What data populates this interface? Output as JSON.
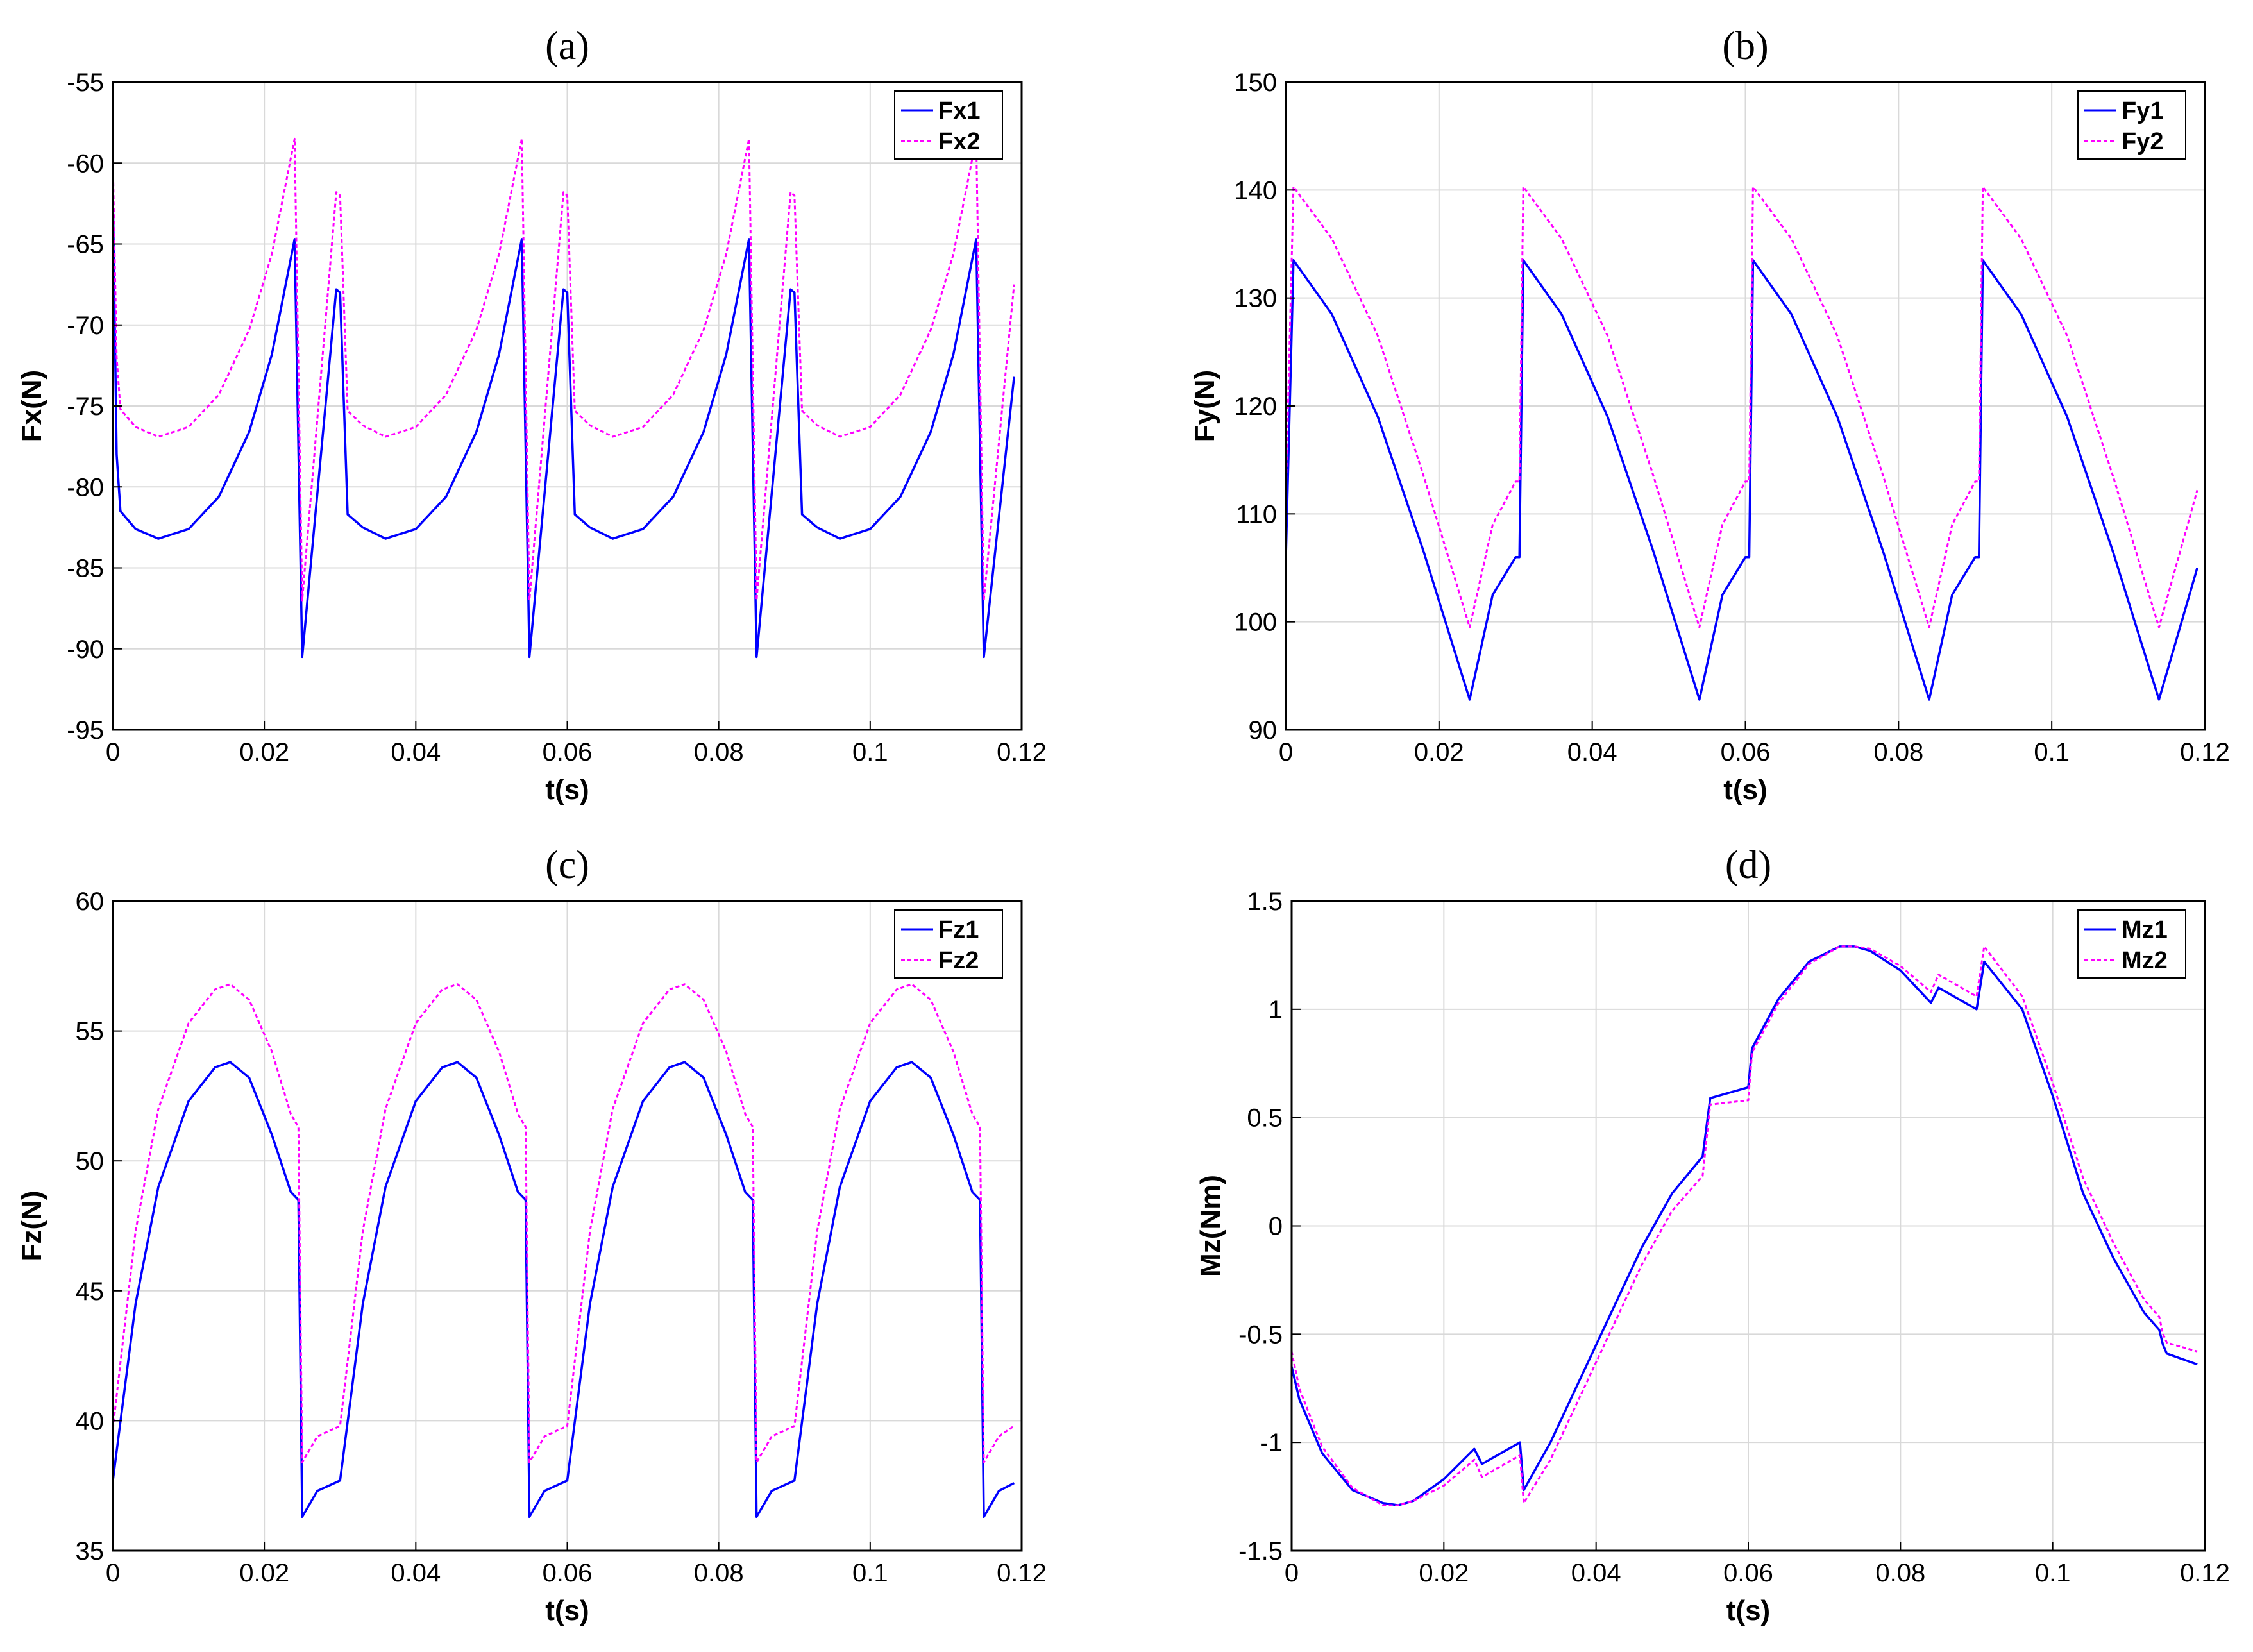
{
  "chart_data": [
    {
      "panel": "(a)",
      "type": "line",
      "title": "(a)",
      "xlabel": "t(s)",
      "ylabel": "Fx(N)",
      "xlim": [
        0,
        0.12
      ],
      "ylim": [
        -95,
        -55
      ],
      "xticks": [
        0,
        0.02,
        0.04,
        0.06,
        0.08,
        0.1,
        0.12
      ],
      "xtick_labels": [
        "0",
        "0.02",
        "0.04",
        "0.06",
        "0.08",
        "0.1",
        "0.12"
      ],
      "yticks": [
        -95,
        -90,
        -85,
        -80,
        -75,
        -70,
        -65,
        -60,
        -55
      ],
      "ytick_labels": [
        "-95",
        "-90",
        "-85",
        "-80",
        "-75",
        "-70",
        "-65",
        "-60",
        "-55"
      ],
      "grid": true,
      "legend_position": "top-right",
      "series": [
        {
          "name": "Fx1",
          "color": "#0000ff",
          "dashed": false,
          "x": [
            0,
            0.0005,
            0.001,
            0.003,
            0.006,
            0.01,
            0.014,
            0.018,
            0.021,
            0.024,
            0.025,
            0.0295,
            0.03,
            0.031,
            0.033,
            0.036,
            0.04,
            0.044,
            0.048,
            0.051,
            0.054,
            0.055,
            0.0595,
            0.06,
            0.061,
            0.063,
            0.066,
            0.07,
            0.074,
            0.078,
            0.081,
            0.084,
            0.085,
            0.0895,
            0.09,
            0.091,
            0.093,
            0.096,
            0.1,
            0.104,
            0.108,
            0.111,
            0.114,
            0.115,
            0.119
          ],
          "y": [
            -62,
            -78,
            -81.5,
            -82.6,
            -83.2,
            -82.6,
            -80.6,
            -76.6,
            -71.8,
            -64.7,
            -90.5,
            -67.8,
            -68,
            -81.7,
            -82.5,
            -83.2,
            -82.6,
            -80.6,
            -76.6,
            -71.8,
            -64.7,
            -90.5,
            -67.8,
            -68,
            -81.7,
            -82.5,
            -83.2,
            -82.6,
            -80.6,
            -76.6,
            -71.8,
            -64.7,
            -90.5,
            -67.8,
            -68,
            -81.7,
            -82.5,
            -83.2,
            -82.6,
            -80.6,
            -76.6,
            -71.8,
            -64.7,
            -90.5,
            -73.2
          ]
        },
        {
          "name": "Fx2",
          "color": "#ff00ff",
          "dashed": true,
          "x": [
            0,
            0.0005,
            0.001,
            0.003,
            0.006,
            0.01,
            0.014,
            0.018,
            0.021,
            0.024,
            0.025,
            0.0295,
            0.03,
            0.031,
            0.033,
            0.036,
            0.04,
            0.044,
            0.048,
            0.051,
            0.054,
            0.055,
            0.0595,
            0.06,
            0.061,
            0.063,
            0.066,
            0.07,
            0.074,
            0.078,
            0.081,
            0.084,
            0.085,
            0.0895,
            0.09,
            0.091,
            0.093,
            0.096,
            0.1,
            0.104,
            0.108,
            0.111,
            0.114,
            0.115,
            0.119
          ],
          "y": [
            -60,
            -72,
            -75.2,
            -76.3,
            -76.9,
            -76.3,
            -74.3,
            -70.3,
            -65.6,
            -58.5,
            -87,
            -61.8,
            -62,
            -75.3,
            -76.2,
            -76.9,
            -76.3,
            -74.3,
            -70.3,
            -65.6,
            -58.5,
            -87,
            -61.8,
            -62,
            -75.3,
            -76.2,
            -76.9,
            -76.3,
            -74.3,
            -70.3,
            -65.6,
            -58.5,
            -87,
            -61.8,
            -62,
            -75.3,
            -76.2,
            -76.9,
            -76.3,
            -74.3,
            -70.3,
            -65.6,
            -58.5,
            -87,
            -67.5
          ]
        }
      ]
    },
    {
      "panel": "(b)",
      "type": "line",
      "title": "(b)",
      "xlabel": "t(s)",
      "ylabel": "Fy(N)",
      "xlim": [
        0,
        0.12
      ],
      "ylim": [
        90,
        150
      ],
      "xticks": [
        0,
        0.02,
        0.04,
        0.06,
        0.08,
        0.1,
        0.12
      ],
      "xtick_labels": [
        "0",
        "0.02",
        "0.04",
        "0.06",
        "0.08",
        "0.1",
        "0.12"
      ],
      "yticks": [
        90,
        100,
        110,
        120,
        130,
        140,
        150
      ],
      "ytick_labels": [
        "90",
        "100",
        "110",
        "120",
        "130",
        "140",
        "150"
      ],
      "grid": true,
      "legend_position": "top-right",
      "series": [
        {
          "name": "Fy1",
          "color": "#0000ff",
          "dashed": false,
          "x": [
            0,
            0.001,
            0.006,
            0.012,
            0.018,
            0.024,
            0.027,
            0.03,
            0.0305,
            0.031,
            0.036,
            0.042,
            0.048,
            0.054,
            0.057,
            0.06,
            0.0605,
            0.061,
            0.066,
            0.072,
            0.078,
            0.084,
            0.087,
            0.09,
            0.0905,
            0.091,
            0.096,
            0.102,
            0.108,
            0.114,
            0.119
          ],
          "y": [
            106,
            133.5,
            128.5,
            119,
            106.5,
            92.8,
            102.5,
            106,
            106,
            133.5,
            128.5,
            119,
            106.5,
            92.8,
            102.5,
            106,
            106,
            133.5,
            128.5,
            119,
            106.5,
            92.8,
            102.5,
            106,
            106,
            133.5,
            128.5,
            119,
            106.5,
            92.8,
            105
          ]
        },
        {
          "name": "Fy2",
          "color": "#ff00ff",
          "dashed": true,
          "x": [
            0,
            0.001,
            0.006,
            0.012,
            0.018,
            0.024,
            0.027,
            0.03,
            0.0305,
            0.031,
            0.036,
            0.042,
            0.048,
            0.054,
            0.057,
            0.06,
            0.0605,
            0.061,
            0.066,
            0.072,
            0.078,
            0.084,
            0.087,
            0.09,
            0.0905,
            0.091,
            0.096,
            0.102,
            0.108,
            0.114,
            0.119
          ],
          "y": [
            112,
            140.3,
            135.5,
            126.5,
            113.5,
            99.5,
            109,
            113,
            113,
            140.3,
            135.5,
            126.5,
            113.5,
            99.5,
            109,
            113,
            113,
            140.3,
            135.5,
            126.5,
            113.5,
            99.5,
            109,
            113,
            113,
            140.3,
            135.5,
            126.5,
            113.5,
            99.5,
            112.2
          ]
        }
      ]
    },
    {
      "panel": "(c)",
      "type": "line",
      "title": "(c)",
      "xlabel": "t(s)",
      "ylabel": "Fz(N)",
      "xlim": [
        0,
        0.12
      ],
      "ylim": [
        35,
        60
      ],
      "xticks": [
        0,
        0.02,
        0.04,
        0.06,
        0.08,
        0.1,
        0.12
      ],
      "xtick_labels": [
        "0",
        "0.02",
        "0.04",
        "0.06",
        "0.08",
        "0.1",
        "0.12"
      ],
      "yticks": [
        35,
        40,
        45,
        50,
        55,
        60
      ],
      "ytick_labels": [
        "35",
        "40",
        "45",
        "50",
        "55",
        "60"
      ],
      "grid": true,
      "legend_position": "top-right",
      "series": [
        {
          "name": "Fz1",
          "color": "#0000ff",
          "dashed": false,
          "x": [
            0,
            0.003,
            0.006,
            0.01,
            0.0135,
            0.0155,
            0.018,
            0.021,
            0.0235,
            0.0245,
            0.025,
            0.027,
            0.03,
            0.033,
            0.036,
            0.04,
            0.0435,
            0.0455,
            0.048,
            0.051,
            0.0535,
            0.0545,
            0.055,
            0.057,
            0.06,
            0.063,
            0.066,
            0.07,
            0.0735,
            0.0755,
            0.078,
            0.081,
            0.0835,
            0.0845,
            0.085,
            0.087,
            0.09,
            0.093,
            0.096,
            0.1,
            0.1035,
            0.1055,
            0.108,
            0.111,
            0.1135,
            0.1145,
            0.115,
            0.117,
            0.119
          ],
          "y": [
            37.7,
            44.5,
            49,
            52.3,
            53.6,
            53.8,
            53.2,
            51,
            48.8,
            48.5,
            36.3,
            37.3,
            37.7,
            44.5,
            49,
            52.3,
            53.6,
            53.8,
            53.2,
            51,
            48.8,
            48.5,
            36.3,
            37.3,
            37.7,
            44.5,
            49,
            52.3,
            53.6,
            53.8,
            53.2,
            51,
            48.8,
            48.5,
            36.3,
            37.3,
            37.7,
            44.5,
            49,
            52.3,
            53.6,
            53.8,
            53.2,
            51,
            48.8,
            48.5,
            36.3,
            37.3,
            37.6
          ]
        },
        {
          "name": "Fz2",
          "color": "#ff00ff",
          "dashed": true,
          "x": [
            0,
            0.003,
            0.006,
            0.01,
            0.0135,
            0.0155,
            0.018,
            0.021,
            0.0235,
            0.0245,
            0.025,
            0.027,
            0.03,
            0.033,
            0.036,
            0.04,
            0.0435,
            0.0455,
            0.048,
            0.051,
            0.0535,
            0.0545,
            0.055,
            0.057,
            0.06,
            0.063,
            0.066,
            0.07,
            0.0735,
            0.0755,
            0.078,
            0.081,
            0.0835,
            0.0845,
            0.085,
            0.087,
            0.09,
            0.093,
            0.096,
            0.1,
            0.1035,
            0.1055,
            0.108,
            0.111,
            0.1135,
            0.1145,
            0.115,
            0.117,
            0.119
          ],
          "y": [
            39.7,
            47.3,
            52,
            55.3,
            56.6,
            56.8,
            56.2,
            54.2,
            51.8,
            51.3,
            38.4,
            39.4,
            39.8,
            47.3,
            52,
            55.3,
            56.6,
            56.8,
            56.2,
            54.2,
            51.8,
            51.3,
            38.4,
            39.4,
            39.8,
            47.3,
            52,
            55.3,
            56.6,
            56.8,
            56.2,
            54.2,
            51.8,
            51.3,
            38.4,
            39.4,
            39.8,
            47.3,
            52,
            55.3,
            56.6,
            56.8,
            56.2,
            54.2,
            51.8,
            51.3,
            38.4,
            39.4,
            39.8
          ]
        }
      ]
    },
    {
      "panel": "(d)",
      "type": "line",
      "title": "(d)",
      "xlabel": "t(s)",
      "ylabel": "Mz(Nm)",
      "xlim": [
        0,
        0.12
      ],
      "ylim": [
        -1.5,
        1.5
      ],
      "xticks": [
        0,
        0.02,
        0.04,
        0.06,
        0.08,
        0.1,
        0.12
      ],
      "xtick_labels": [
        "0",
        "0.02",
        "0.04",
        "0.06",
        "0.08",
        "0.1",
        "0.12"
      ],
      "yticks": [
        -1.5,
        -1,
        -0.5,
        0,
        0.5,
        1,
        1.5
      ],
      "ytick_labels": [
        "-1.5",
        "-1",
        "-0.5",
        "0",
        "0.5",
        "1",
        "1.5"
      ],
      "grid": true,
      "legend_position": "top-right",
      "series": [
        {
          "name": "Mz1",
          "color": "#0000ff",
          "dashed": false,
          "x": [
            0,
            0.001,
            0.004,
            0.008,
            0.012,
            0.014,
            0.016,
            0.02,
            0.024,
            0.025,
            0.03,
            0.0305,
            0.034,
            0.04,
            0.046,
            0.05,
            0.054,
            0.055,
            0.06,
            0.0605,
            0.064,
            0.068,
            0.072,
            0.074,
            0.076,
            0.08,
            0.084,
            0.085,
            0.09,
            0.091,
            0.096,
            0.1,
            0.104,
            0.108,
            0.112,
            0.114,
            0.1145,
            0.115,
            0.119
          ],
          "y": [
            -0.65,
            -0.8,
            -1.05,
            -1.22,
            -1.28,
            -1.29,
            -1.27,
            -1.17,
            -1.03,
            -1.1,
            -1.0,
            -1.22,
            -1.0,
            -0.55,
            -0.1,
            0.15,
            0.32,
            0.59,
            0.64,
            0.82,
            1.05,
            1.22,
            1.29,
            1.29,
            1.27,
            1.18,
            1.03,
            1.1,
            1.0,
            1.22,
            1.0,
            0.6,
            0.15,
            -0.15,
            -0.4,
            -0.48,
            -0.55,
            -0.59,
            -0.64
          ]
        },
        {
          "name": "Mz2",
          "color": "#ff00ff",
          "dashed": true,
          "x": [
            0,
            0.001,
            0.004,
            0.008,
            0.012,
            0.014,
            0.016,
            0.02,
            0.024,
            0.025,
            0.03,
            0.0305,
            0.034,
            0.04,
            0.046,
            0.05,
            0.054,
            0.055,
            0.06,
            0.0605,
            0.064,
            0.068,
            0.072,
            0.074,
            0.076,
            0.08,
            0.084,
            0.085,
            0.09,
            0.091,
            0.096,
            0.1,
            0.104,
            0.108,
            0.112,
            0.114,
            0.1145,
            0.115,
            0.119
          ],
          "y": [
            -0.58,
            -0.75,
            -1.02,
            -1.21,
            -1.29,
            -1.29,
            -1.27,
            -1.2,
            -1.08,
            -1.16,
            -1.06,
            -1.28,
            -1.08,
            -0.63,
            -0.18,
            0.07,
            0.23,
            0.56,
            0.58,
            0.8,
            1.03,
            1.21,
            1.29,
            1.29,
            1.28,
            1.2,
            1.08,
            1.16,
            1.06,
            1.29,
            1.06,
            0.66,
            0.22,
            -0.08,
            -0.34,
            -0.42,
            -0.5,
            -0.54,
            -0.58
          ]
        }
      ]
    }
  ]
}
